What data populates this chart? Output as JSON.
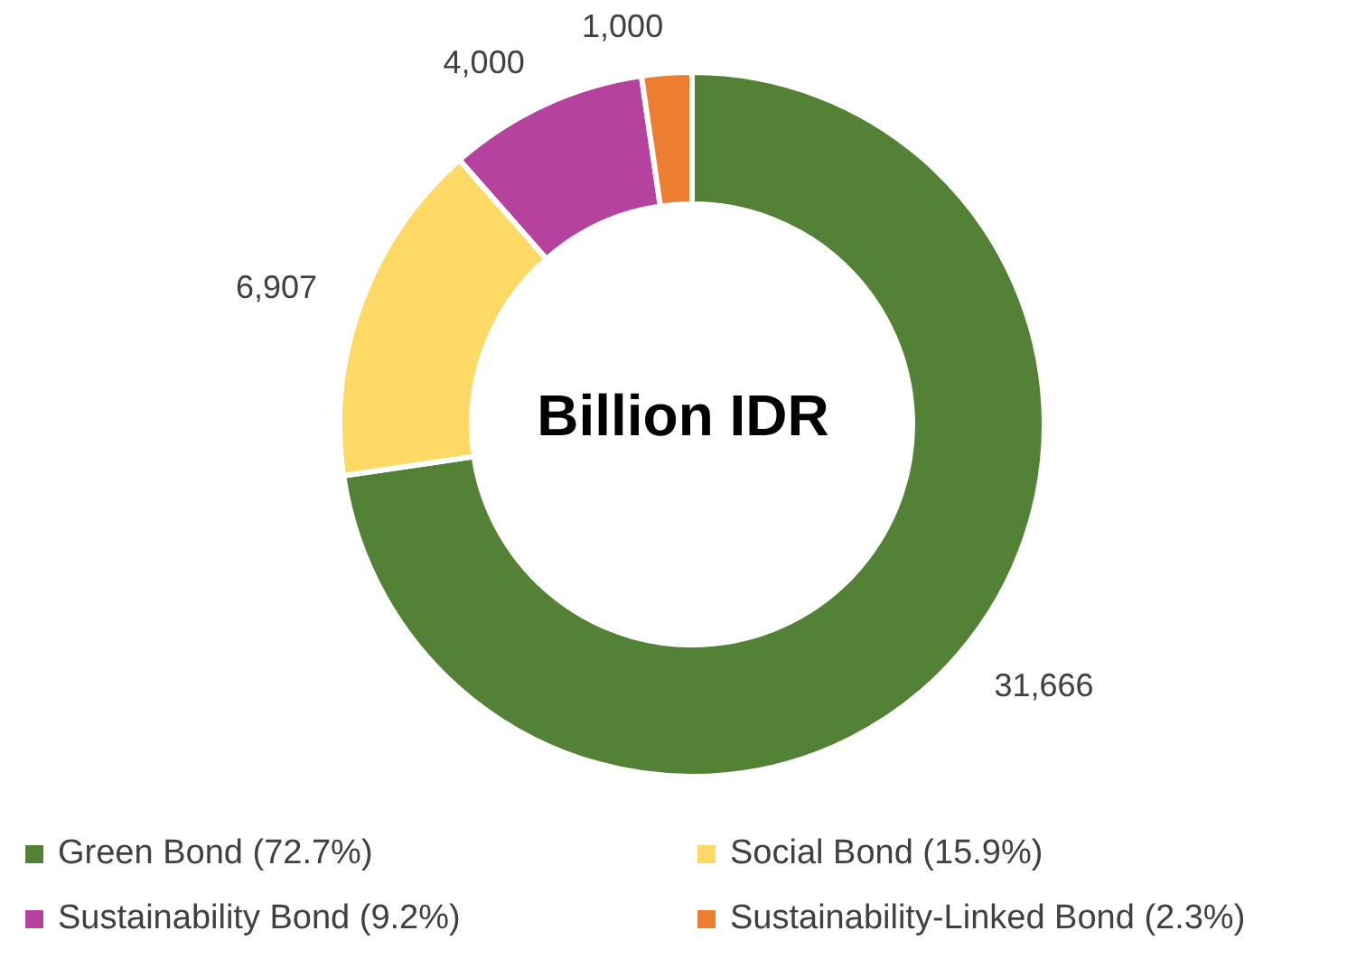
{
  "chart_data": {
    "type": "donut",
    "categories": [
      "Green Bond (72.7%)",
      "Social Bond (15.9%)",
      "Sustainability Bond (9.2%)",
      "Sustainability-Linked Bond (2.3%)"
    ],
    "values": [
      31666,
      6907,
      4000,
      1000
    ],
    "colors": [
      "#538135",
      "#ffd966",
      "#b5429e",
      "#ed7d31"
    ],
    "value_labels": [
      "31,666",
      "6,907",
      "4,000",
      "1,000"
    ],
    "annotations": [
      "Billion IDR"
    ],
    "legend": "bottom"
  }
}
